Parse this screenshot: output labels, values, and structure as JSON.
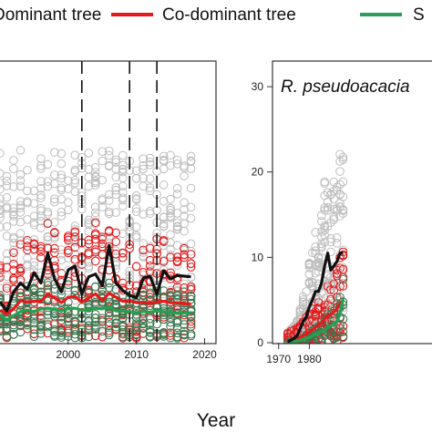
{
  "legend": {
    "items": [
      {
        "label": "Dominant tree",
        "color": "#e41a1c"
      },
      {
        "label": "Co-dominant tree",
        "color": "#e41a1c"
      },
      {
        "label": "S",
        "color": "#2e9c5a"
      }
    ],
    "legend_line_colors": [
      "#e41a1c",
      "#e41a1c",
      "#2e9c5a"
    ]
  },
  "x_axis_title": "Year",
  "chart_data": [
    {
      "type": "scatter",
      "panel": "left",
      "title": "",
      "xlabel": "Year",
      "x_ticks": [
        2000,
        2010,
        2020
      ],
      "x_tick_labels": [
        "2000",
        "2010",
        "2020"
      ],
      "xlim": [
        1990,
        2021
      ],
      "ylim": [
        0,
        40
      ],
      "grid": false,
      "vlines": [
        2002,
        2009,
        2013
      ],
      "series": [
        {
          "name": "Dominant tree",
          "role": "points-grey",
          "color": "#bdbdbd"
        },
        {
          "name": "Co-dominant tree",
          "role": "points",
          "color": "#e41a1c"
        },
        {
          "name": "S",
          "role": "points",
          "color": "#3a7a52"
        }
      ],
      "lines": {
        "x": [
          1990,
          1991,
          1992,
          1993,
          1994,
          1995,
          1996,
          1997,
          1998,
          1999,
          2000,
          2001,
          2002,
          2003,
          2004,
          2005,
          2006,
          2007,
          2008,
          2009,
          2010,
          2011,
          2012,
          2013,
          2014,
          2015,
          2016,
          2017,
          2018
        ],
        "black": [
          5.3,
          4.0,
          6.8,
          8.1,
          7.2,
          9.6,
          8.1,
          12.5,
          8.7,
          6.8,
          10.0,
          10.6,
          6.5,
          9.0,
          9.4,
          7.7,
          13.6,
          8.1,
          7.0,
          6.3,
          5.9,
          8.8,
          9.1,
          6.5,
          9.9,
          8.7,
          9.2,
          9.1,
          9.0
        ],
        "red": [
          4.1,
          3.5,
          4.3,
          5.5,
          5.3,
          5.4,
          5.4,
          6.5,
          5.9,
          5.2,
          6.0,
          6.1,
          5.3,
          5.9,
          6.5,
          5.5,
          6.6,
          6.0,
          5.4,
          5.5,
          5.2,
          5.2,
          5.1,
          5.3,
          5.4,
          5.2,
          5.2,
          5.1,
          5.0
        ],
        "green": [
          3.4,
          2.6,
          3.3,
          3.9,
          4.1,
          3.9,
          4.3,
          4.4,
          4.2,
          4.0,
          4.3,
          4.4,
          4.1,
          4.2,
          4.4,
          4.3,
          4.6,
          4.0,
          3.9,
          3.9,
          3.7,
          3.9,
          3.8,
          4.0,
          3.9,
          3.8,
          3.6,
          3.7,
          3.7
        ]
      }
    },
    {
      "type": "scatter",
      "panel": "right",
      "title": "R. pseudoacacia",
      "xlabel": "Year",
      "x_ticks": [
        1970,
        1980
      ],
      "x_tick_labels": [
        "1970",
        "1980"
      ],
      "y_ticks": [
        0,
        10,
        20,
        30
      ],
      "y_tick_labels": [
        "0",
        "10",
        "20",
        "30"
      ],
      "xlim": [
        1968,
        2020
      ],
      "ylim": [
        0,
        33
      ],
      "grid": false,
      "series": [
        {
          "name": "Dominant tree",
          "role": "points-grey",
          "color": "#bdbdbd"
        },
        {
          "name": "Co-dominant tree",
          "role": "points",
          "color": "#e41a1c"
        },
        {
          "name": "S",
          "role": "points",
          "color": "#3a7a52"
        }
      ],
      "lines": {
        "x": [
          1973,
          1974,
          1975,
          1976,
          1977,
          1978,
          1979,
          1980,
          1981,
          1982,
          1983,
          1984,
          1985,
          1986,
          1987,
          1988,
          1989,
          1990,
          1991
        ],
        "black": [
          0.1,
          0.3,
          0.5,
          0.8,
          1.6,
          2.5,
          3.0,
          4.2,
          5.0,
          6.0,
          6.0,
          7.0,
          9.0,
          10.5,
          8.5,
          9.0,
          9.5,
          10.5,
          10.5
        ],
        "red": [
          0.1,
          0.2,
          0.3,
          0.4,
          0.6,
          0.8,
          1.0,
          1.3,
          1.5,
          1.8,
          2.1,
          2.3,
          2.8,
          3.1,
          3.3,
          3.6,
          4.0,
          4.5,
          5.0
        ],
        "green": [
          0.0,
          0.1,
          0.2,
          0.2,
          0.3,
          0.4,
          0.5,
          0.6,
          0.8,
          1.0,
          1.1,
          1.3,
          1.5,
          1.8,
          2.0,
          2.2,
          2.5,
          3.4,
          5.2
        ]
      }
    }
  ]
}
